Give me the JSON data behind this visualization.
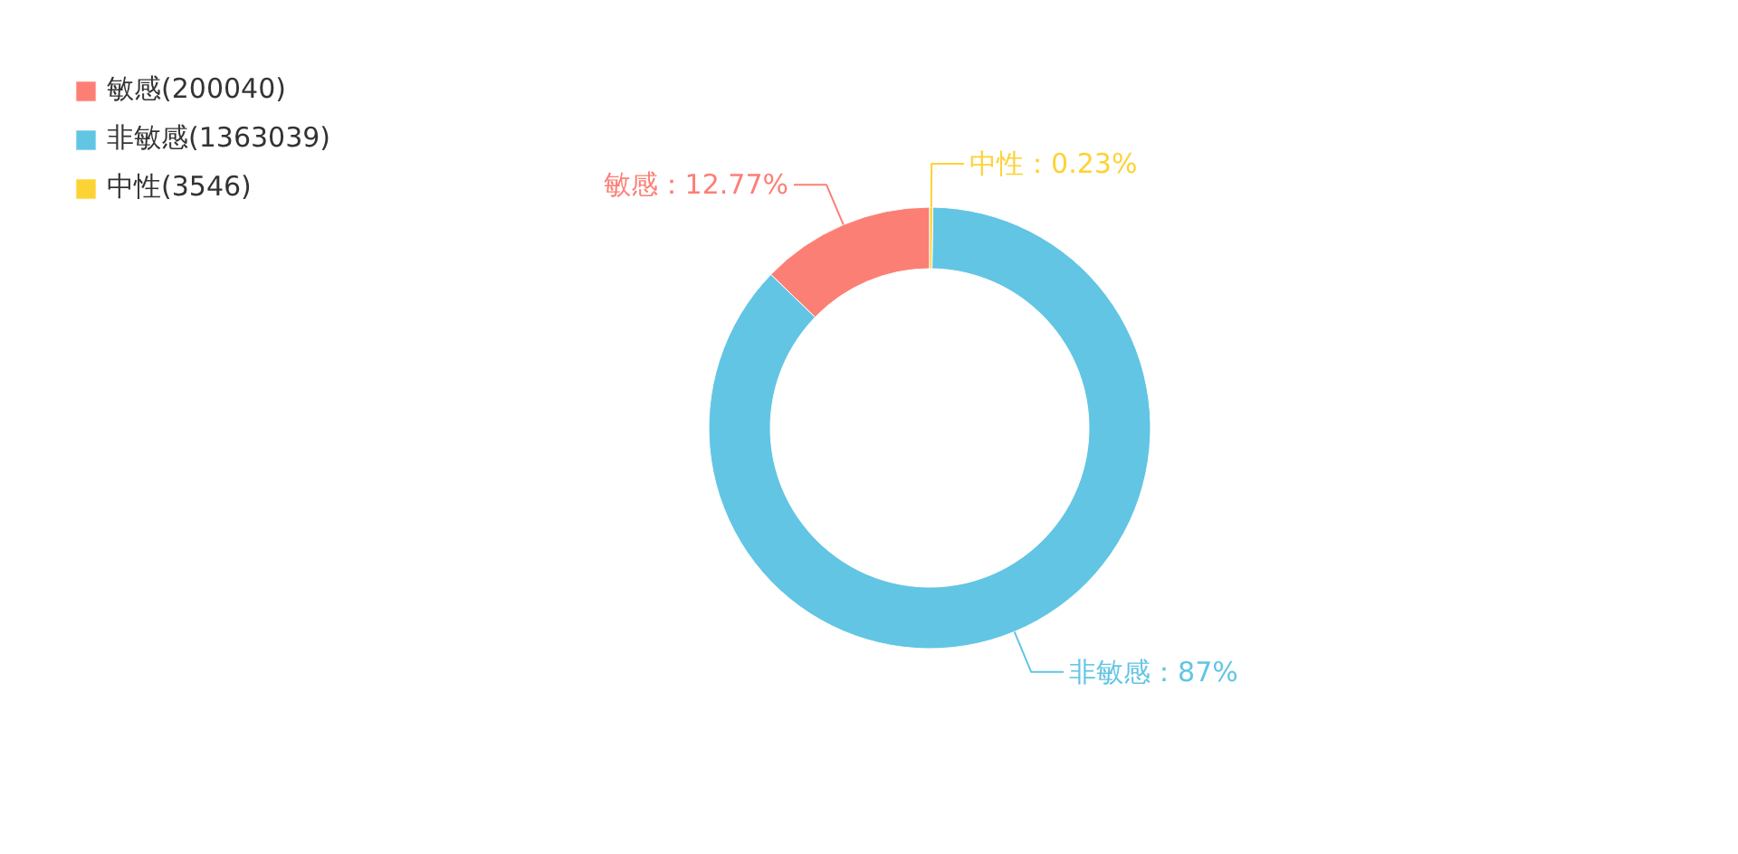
{
  "chart_data": {
    "type": "donut",
    "categories": [
      "敏感(200040)",
      "非敏感(1363039)",
      "中性(3546)"
    ],
    "values": [
      12.77,
      87,
      0.23
    ],
    "colors": [
      "#fc7f76",
      "#62c5e3",
      "#fdd235"
    ],
    "value_labels": [
      "敏感：12.77%",
      "非敏感：87%",
      "中性：0.23%"
    ],
    "legend": "top left"
  }
}
